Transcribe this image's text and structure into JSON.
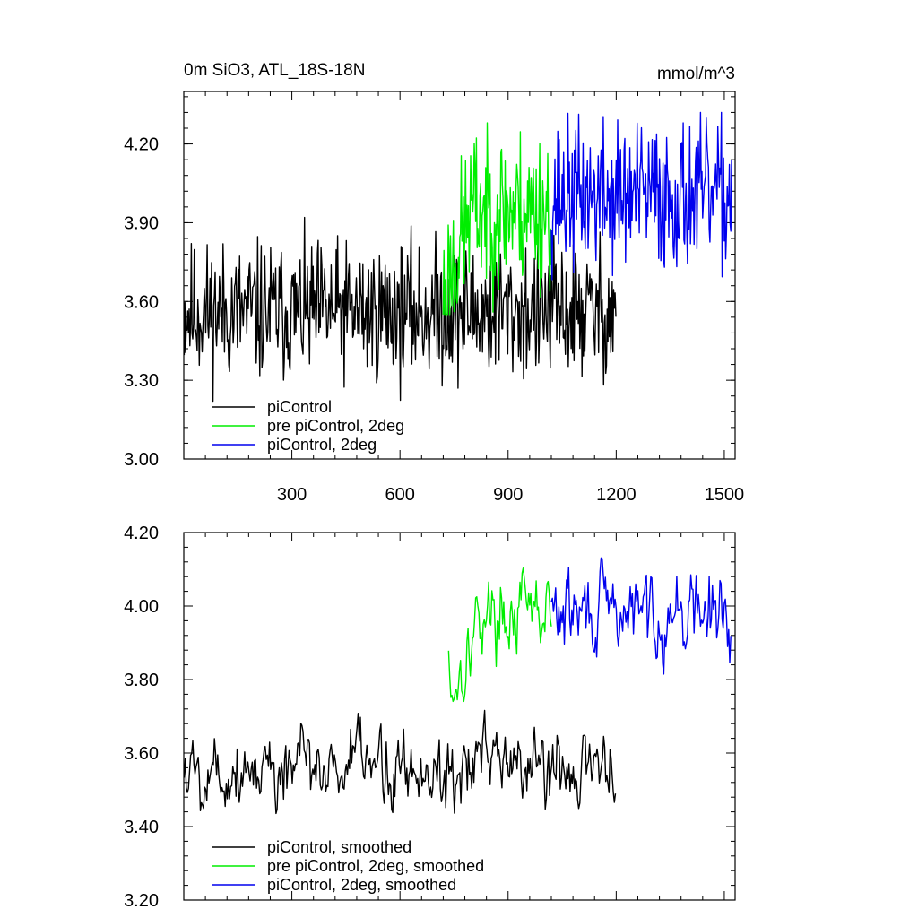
{
  "chart_data": [
    {
      "type": "line",
      "title_left": "0m SiO3, ATL_18S-18N",
      "title_right": "mmol/m^3",
      "xlim": [
        0,
        1530
      ],
      "ylim": [
        3.0,
        4.4
      ],
      "x_ticks": [
        300,
        600,
        900,
        1200,
        1500
      ],
      "x_tick_labels": [
        "300",
        "600",
        "900",
        "1200",
        "1500"
      ],
      "y_ticks": [
        3.0,
        3.3,
        3.6,
        3.9,
        4.2
      ],
      "y_tick_labels": [
        "3.00",
        "3.30",
        "3.60",
        "3.90",
        "4.20"
      ],
      "legend_position": "bottom-left",
      "series": [
        {
          "name": "piControl",
          "color": "#000000",
          "x_start": 1,
          "x_end": 1200,
          "mean": 3.56,
          "noise": 0.13,
          "min": 3.22,
          "max": 3.92,
          "seed": 11
        },
        {
          "name": "pre piControl, 2deg",
          "color": "#00ee00",
          "x_start": 720,
          "x_end": 1020,
          "mean": 3.95,
          "noise": 0.15,
          "min": 3.55,
          "max": 4.28,
          "ramp": [
            3.62,
            3.97
          ],
          "ramp_end": 800,
          "seed": 23
        },
        {
          "name": "piControl, 2deg",
          "color": "#0000ee",
          "x_start": 1020,
          "x_end": 1520,
          "mean": 4.0,
          "noise": 0.14,
          "min": 3.6,
          "max": 4.32,
          "seed": 37
        }
      ]
    },
    {
      "type": "line",
      "xlim": [
        0,
        1530
      ],
      "ylim": [
        3.2,
        4.2
      ],
      "x_ticks": [
        300,
        600,
        900,
        1200,
        1500
      ],
      "y_ticks": [
        3.2,
        3.4,
        3.6,
        3.8,
        4.0,
        4.2
      ],
      "y_tick_labels": [
        "3.20",
        "3.40",
        "3.60",
        "3.80",
        "4.00",
        "4.20"
      ],
      "legend_position": "bottom-left",
      "series": [
        {
          "name": "piControl, smoothed",
          "color": "#000000",
          "x_start": 1,
          "x_end": 1200,
          "mean": 3.56,
          "noise": 0.065,
          "min": 3.38,
          "max": 3.77,
          "seed": 5
        },
        {
          "name": "pre piControl, 2deg, smoothed",
          "color": "#00ee00",
          "x_start": 735,
          "x_end": 1020,
          "mean": 3.98,
          "noise": 0.06,
          "min": 3.69,
          "max": 4.16,
          "ramp": [
            3.75,
            3.98
          ],
          "ramp_end": 820,
          "seed": 17
        },
        {
          "name": "piControl, 2deg, smoothed",
          "color": "#0000ee",
          "x_start": 1020,
          "x_end": 1520,
          "mean": 3.98,
          "noise": 0.065,
          "min": 3.8,
          "max": 4.16,
          "seed": 29
        }
      ]
    }
  ]
}
